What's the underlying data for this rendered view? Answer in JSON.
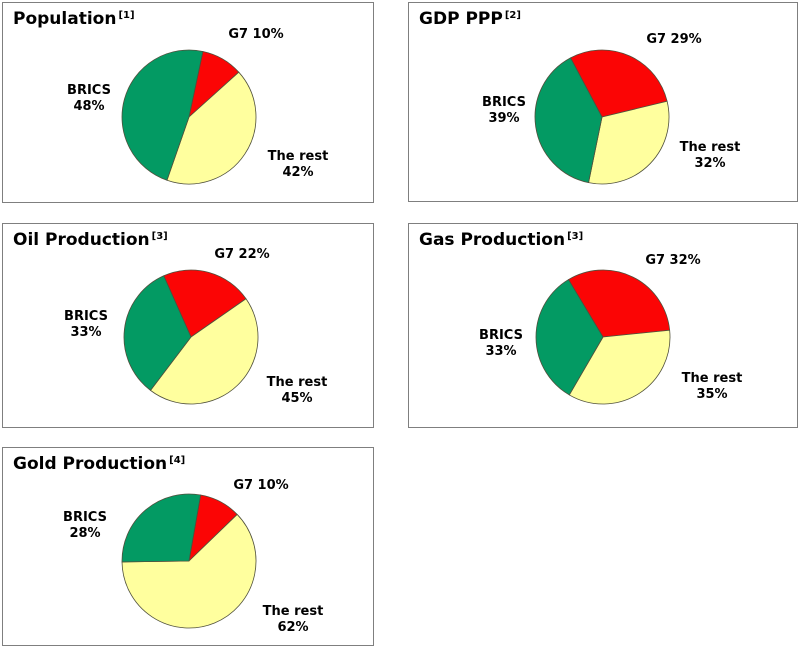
{
  "colors": {
    "g7": "#fb0505",
    "rest": "#ffff9e",
    "brics": "#039a63",
    "slice_border": "#50503c",
    "panel_border": "#7f7f7f",
    "label_text": "#000000",
    "background": "#ffffff"
  },
  "chart_data": [
    {
      "type": "pie",
      "title": "Population",
      "footnote_marker": "[1]",
      "unit": "%",
      "start_angle_deg": 12,
      "legend_position": "around",
      "slices": [
        {
          "name": "G7",
          "value": 10,
          "color_key": "g7",
          "label_lines": [
            "G7 10%"
          ]
        },
        {
          "name": "The rest",
          "value": 42,
          "color_key": "rest",
          "label_lines": [
            "The rest",
            "42%"
          ]
        },
        {
          "name": "BRICS",
          "value": 48,
          "color_key": "brics",
          "label_lines": [
            "BRICS",
            "48%"
          ]
        }
      ]
    },
    {
      "type": "pie",
      "title": "GDP PPP",
      "footnote_marker": "[2]",
      "unit": "%",
      "start_angle_deg": -28,
      "legend_position": "around",
      "slices": [
        {
          "name": "G7",
          "value": 29,
          "color_key": "g7",
          "label_lines": [
            "G7 29%"
          ]
        },
        {
          "name": "The rest",
          "value": 32,
          "color_key": "rest",
          "label_lines": [
            "The rest",
            "32%"
          ]
        },
        {
          "name": "BRICS",
          "value": 39,
          "color_key": "brics",
          "label_lines": [
            "BRICS",
            "39%"
          ]
        }
      ]
    },
    {
      "type": "pie",
      "title": "Oil Production",
      "footnote_marker": "[3]",
      "unit": "%",
      "start_angle_deg": -24,
      "legend_position": "around",
      "slices": [
        {
          "name": "G7",
          "value": 22,
          "color_key": "g7",
          "label_lines": [
            "G7 22%"
          ]
        },
        {
          "name": "The rest",
          "value": 45,
          "color_key": "rest",
          "label_lines": [
            "The rest",
            "45%"
          ]
        },
        {
          "name": "BRICS",
          "value": 33,
          "color_key": "brics",
          "label_lines": [
            "BRICS",
            "33%"
          ]
        }
      ]
    },
    {
      "type": "pie",
      "title": "Gas Production",
      "footnote_marker": "[3]",
      "unit": "%",
      "start_angle_deg": -31,
      "legend_position": "around",
      "slices": [
        {
          "name": "G7",
          "value": 32,
          "color_key": "g7",
          "label_lines": [
            "G7 32%"
          ]
        },
        {
          "name": "The rest",
          "value": 35,
          "color_key": "rest",
          "label_lines": [
            "The rest",
            "35%"
          ]
        },
        {
          "name": "BRICS",
          "value": 33,
          "color_key": "brics",
          "label_lines": [
            "BRICS",
            "33%"
          ]
        }
      ]
    },
    {
      "type": "pie",
      "title": "Gold Production",
      "footnote_marker": "[4]",
      "unit": "%",
      "start_angle_deg": 10,
      "legend_position": "around",
      "slices": [
        {
          "name": "G7",
          "value": 10,
          "color_key": "g7",
          "label_lines": [
            "G7 10%"
          ]
        },
        {
          "name": "The rest",
          "value": 62,
          "color_key": "rest",
          "label_lines": [
            "The rest",
            "62%"
          ]
        },
        {
          "name": "BRICS",
          "value": 28,
          "color_key": "brics",
          "label_lines": [
            "BRICS",
            "28%"
          ]
        }
      ]
    }
  ]
}
